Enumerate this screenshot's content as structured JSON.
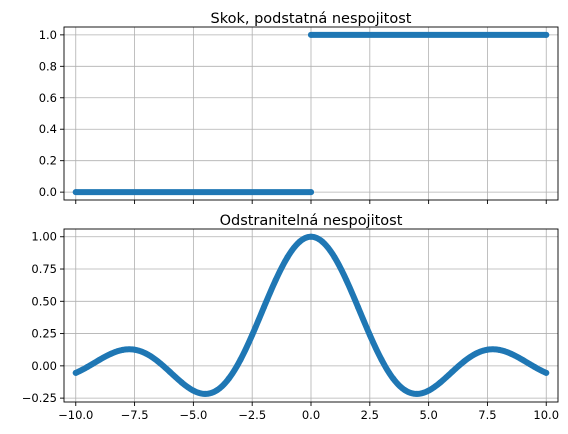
{
  "chart_data": [
    {
      "type": "scatter",
      "title": "Skok, podstatná nespojitost",
      "xlim": [
        -10.5,
        10.5
      ],
      "ylim": [
        -0.05,
        1.05
      ],
      "xticks": [
        -10,
        -7.5,
        -5,
        -2.5,
        0,
        2.5,
        5,
        7.5,
        10
      ],
      "xtick_labels_visible": false,
      "yticks": [
        0.0,
        0.2,
        0.4,
        0.6,
        0.8,
        1.0
      ],
      "ytick_labels": [
        "0.0",
        "0.2",
        "0.4",
        "0.6",
        "0.8",
        "1.0"
      ],
      "grid": true,
      "color": "#1f77b4",
      "function": "heaviside step: 0 for x < 0, 1 for x >= 0",
      "series": [
        {
          "x": [
            -10,
            0
          ],
          "y": [
            0,
            0
          ]
        },
        {
          "x": [
            0,
            10
          ],
          "y": [
            1,
            1
          ]
        }
      ]
    },
    {
      "type": "scatter",
      "title": "Odstranitelná nespojitost",
      "xlim": [
        -10.5,
        10.5
      ],
      "ylim": [
        -0.28,
        1.06
      ],
      "xticks": [
        -10,
        -7.5,
        -5,
        -2.5,
        0,
        2.5,
        5,
        7.5,
        10
      ],
      "xtick_labels": [
        "−10.0",
        "−7.5",
        "−5.0",
        "−2.5",
        "0.0",
        "2.5",
        "5.0",
        "7.5",
        "10.0"
      ],
      "yticks": [
        -0.25,
        0.0,
        0.25,
        0.5,
        0.75,
        1.0
      ],
      "ytick_labels": [
        "−0.25",
        "0.00",
        "0.25",
        "0.50",
        "0.75",
        "1.00"
      ],
      "grid": true,
      "color": "#1f77b4",
      "function": "sin(x)/x",
      "series": [
        {
          "x": [
            -10,
            -9.5,
            -9,
            -8.5,
            -8,
            -7.5,
            -7,
            -6.5,
            -6,
            -5.5,
            -5,
            -4.5,
            -4,
            -3.5,
            -3,
            -2.5,
            -2,
            -1.5,
            -1,
            -0.5,
            0,
            0.5,
            1,
            1.5,
            2,
            2.5,
            3,
            3.5,
            4,
            4.5,
            5,
            5.5,
            6,
            6.5,
            7,
            7.5,
            8,
            8.5,
            9,
            9.5,
            10
          ],
          "y": [
            -0.054,
            -0.008,
            0.046,
            0.094,
            0.124,
            0.125,
            0.094,
            0.033,
            -0.047,
            -0.128,
            -0.192,
            -0.217,
            -0.189,
            -0.1,
            0.047,
            0.239,
            0.455,
            0.665,
            0.841,
            0.959,
            1.0,
            0.959,
            0.841,
            0.665,
            0.455,
            0.239,
            0.047,
            -0.1,
            -0.189,
            -0.217,
            -0.192,
            -0.128,
            -0.047,
            0.033,
            0.094,
            0.125,
            0.124,
            0.094,
            0.046,
            -0.008,
            -0.054
          ]
        }
      ]
    }
  ]
}
